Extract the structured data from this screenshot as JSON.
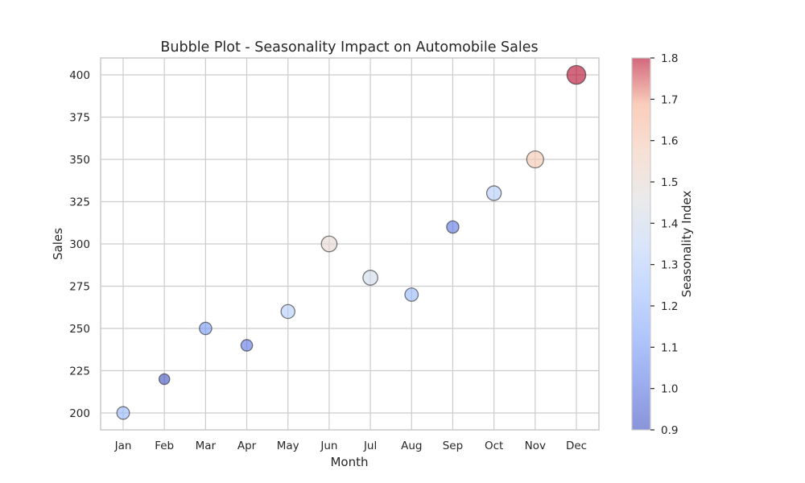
{
  "chart_data": {
    "type": "scatter",
    "title": "Bubble Plot - Seasonality Impact on Automobile Sales",
    "xlabel": "Month",
    "ylabel": "Sales",
    "categories": [
      "Jan",
      "Feb",
      "Mar",
      "Apr",
      "May",
      "Jun",
      "Jul",
      "Aug",
      "Sep",
      "Oct",
      "Nov",
      "Dec"
    ],
    "values": [
      200,
      220,
      250,
      240,
      260,
      300,
      280,
      270,
      310,
      330,
      350,
      400
    ],
    "seasonality_index": [
      1.2,
      0.9,
      1.1,
      1.0,
      1.3,
      1.5,
      1.4,
      1.2,
      1.0,
      1.3,
      1.6,
      1.8
    ],
    "ylim": [
      190,
      410
    ],
    "yticks": [
      200,
      225,
      250,
      275,
      300,
      325,
      350,
      375,
      400
    ],
    "grid": true,
    "colorbar": {
      "label": "Seasonality Index",
      "colormap": "coolwarm",
      "range": [
        0.9,
        1.8
      ],
      "ticks": [
        "0.9",
        "1.0",
        "1.1",
        "1.2",
        "1.3",
        "1.4",
        "1.5",
        "1.6",
        "1.7",
        "1.8"
      ]
    }
  }
}
